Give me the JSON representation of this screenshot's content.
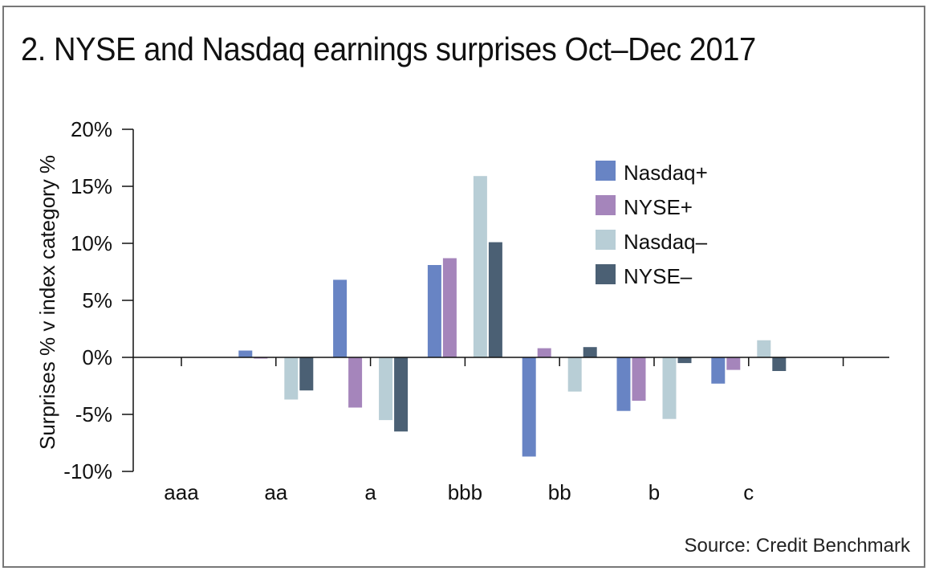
{
  "chart_data": {
    "type": "bar",
    "title": "2. NYSE and Nasdaq earnings surprises Oct–Dec 2017",
    "xlabel": "",
    "ylabel": "Surprises % v index category %",
    "ylim": [
      -10,
      20
    ],
    "yticks": [
      20,
      15,
      10,
      5,
      0,
      -5,
      -10
    ],
    "ytick_labels": [
      "20%",
      "15%",
      "10%",
      "5%",
      "0%",
      "-5%",
      "-10%"
    ],
    "categories": [
      "aaa",
      "aa",
      "a",
      "bbb",
      "bb",
      "b",
      "c",
      ""
    ],
    "series": [
      {
        "name": "Nasdaq+",
        "color": "#6884c4",
        "values": [
          0,
          0.6,
          6.8,
          8.1,
          -8.7,
          -4.7,
          -2.3,
          0
        ]
      },
      {
        "name": "NYSE+",
        "color": "#a585bb",
        "values": [
          0,
          -0.1,
          -4.4,
          8.7,
          0.8,
          -3.8,
          -1.1,
          0
        ]
      },
      {
        "name": "Nasdaq–",
        "color": "#b8ced6",
        "values": [
          0,
          -3.7,
          -5.5,
          15.9,
          -3.0,
          -5.4,
          1.5,
          0
        ]
      },
      {
        "name": "NYSE–",
        "color": "#4b6074",
        "values": [
          0,
          -2.9,
          -6.5,
          10.1,
          0.9,
          -0.5,
          -1.2,
          0
        ]
      }
    ],
    "legend_position": "top-right",
    "grid": false,
    "source": "Source: Credit Benchmark"
  }
}
